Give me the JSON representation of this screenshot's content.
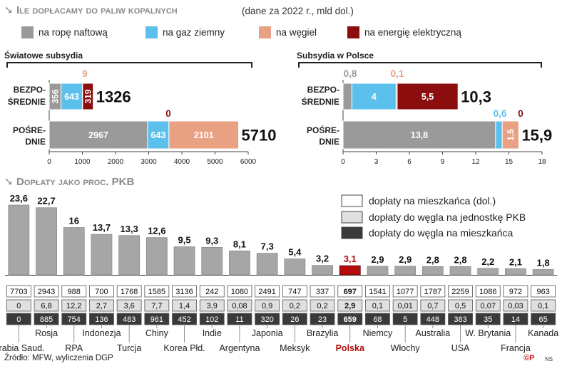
{
  "header": {
    "title": "Ile dopłacamy do paliw kopalnych",
    "subtitle": "(dane za 2022 r., mld dol.)"
  },
  "legend": [
    {
      "label": "na ropę naftową",
      "color": "#9a9a9a"
    },
    {
      "label": "na gaz ziemny",
      "color": "#5bc0eb"
    },
    {
      "label": "na węgiel",
      "color": "#e8a183"
    },
    {
      "label": "na energię elektryczną",
      "color": "#8b0d0d"
    }
  ],
  "chart_data": [
    {
      "type": "bar",
      "orientation": "horizontal",
      "stacked": true,
      "title": "Światowe subsydia",
      "categories": [
        "BEZPO-\nŚREDNIE",
        "POŚRE-\nDNIE"
      ],
      "series": [
        {
          "name": "na ropę naftową",
          "values": [
            356,
            2967
          ],
          "labels": [
            "356",
            "2967"
          ]
        },
        {
          "name": "na gaz ziemny",
          "values": [
            643,
            643
          ],
          "labels": [
            "643",
            "643"
          ]
        },
        {
          "name": "na węgiel",
          "values": [
            9,
            2101
          ],
          "labels": [
            "9",
            "2101"
          ]
        },
        {
          "name": "na energię elektryczną",
          "values": [
            319,
            0
          ],
          "labels": [
            "319",
            "0"
          ]
        }
      ],
      "totals": [
        "1326",
        "5710"
      ],
      "xlim": [
        0,
        6000
      ],
      "xticks": [
        "0",
        "1000",
        "2000",
        "3000",
        "4000",
        "5000",
        "6000"
      ]
    },
    {
      "type": "bar",
      "orientation": "horizontal",
      "stacked": true,
      "title": "Subsydia w Polsce",
      "categories": [
        "BEZPO-\nŚREDNIE",
        "POŚRE-\nDNIE"
      ],
      "series": [
        {
          "name": "na ropę naftową",
          "values": [
            0.8,
            13.8
          ],
          "labels": [
            "0,8",
            "13,8"
          ]
        },
        {
          "name": "na gaz ziemny",
          "values": [
            4,
            0.6
          ],
          "labels": [
            "4",
            "0,6"
          ]
        },
        {
          "name": "na węgiel",
          "values": [
            0.1,
            1.5
          ],
          "labels": [
            "0,1",
            "1,5"
          ]
        },
        {
          "name": "na energię elektryczną",
          "values": [
            5.5,
            0
          ],
          "labels": [
            "5,5",
            "0"
          ]
        }
      ],
      "totals": [
        "10,3",
        "15,9"
      ],
      "xlim": [
        0,
        18
      ],
      "xticks": [
        "0",
        "3",
        "6",
        "9",
        "12",
        "15",
        "18"
      ]
    },
    {
      "type": "bar",
      "title": "Dopłaty jako proc. PKB",
      "categories": [
        "Arabia Saud.",
        "Rosja",
        "RPA",
        "Indonezja",
        "Turcja",
        "Chiny",
        "Korea Płd.",
        "Indie",
        "Argentyna",
        "Japonia",
        "Meksyk",
        "Brazylia",
        "Polska",
        "Niemcy",
        "Włochy",
        "Australia",
        "USA",
        "W. Brytania",
        "Francja",
        "Kanada"
      ],
      "values": [
        23.6,
        22.7,
        16,
        13.7,
        13.3,
        12.6,
        9.5,
        9.3,
        8.1,
        7.3,
        5.4,
        3.2,
        3.1,
        2.9,
        2.9,
        2.8,
        2.8,
        2.2,
        2.1,
        1.8
      ],
      "value_labels": [
        "23,6",
        "22,7",
        "16",
        "13,7",
        "13,3",
        "12,6",
        "9,5",
        "9,3",
        "8,1",
        "7,3",
        "5,4",
        "3,2",
        "3,1",
        "2,9",
        "2,9",
        "2,8",
        "2,8",
        "2,2",
        "2,1",
        "1,8"
      ],
      "highlight": "Polska",
      "table": {
        "legend": [
          "dopłaty na mieszkańca (dol.)",
          "dopłaty do węgla na jednostkę PKB",
          "dopłaty do węgla na mieszkańca"
        ],
        "rows": [
          [
            "7703",
            "2943",
            "988",
            "700",
            "1768",
            "1585",
            "3136",
            "242",
            "1080",
            "2491",
            "747",
            "337",
            "697",
            "1541",
            "1077",
            "1787",
            "2259",
            "1086",
            "972",
            "963"
          ],
          [
            "0",
            "6,8",
            "12,2",
            "2,7",
            "3,6",
            "7,7",
            "1,4",
            "3,9",
            "0,08",
            "0,9",
            "0,2",
            "0,2",
            "2,9",
            "0,1",
            "0,01",
            "0,7",
            "0,5",
            "0,07",
            "0,03",
            "0,1"
          ],
          [
            "0",
            "885",
            "754",
            "136",
            "483",
            "961",
            "452",
            "102",
            "11",
            "320",
            "26",
            "23",
            "659",
            "68",
            "5",
            "448",
            "383",
            "35",
            "14",
            "65"
          ]
        ]
      }
    }
  ],
  "footer": {
    "source": "Źródło: MFW, wyliczenia DGP",
    "logo": "©P",
    "author": "NS"
  },
  "colors": {
    "oil": "#9a9a9a",
    "gas": "#5bc0eb",
    "coal": "#e8a183",
    "electricity": "#8b0d0d",
    "pkb_bar": "#a6a6a6",
    "highlight_bar": "#b30d0d",
    "highlight_text": "#b30d0d",
    "heading": "#8a8a8a"
  }
}
